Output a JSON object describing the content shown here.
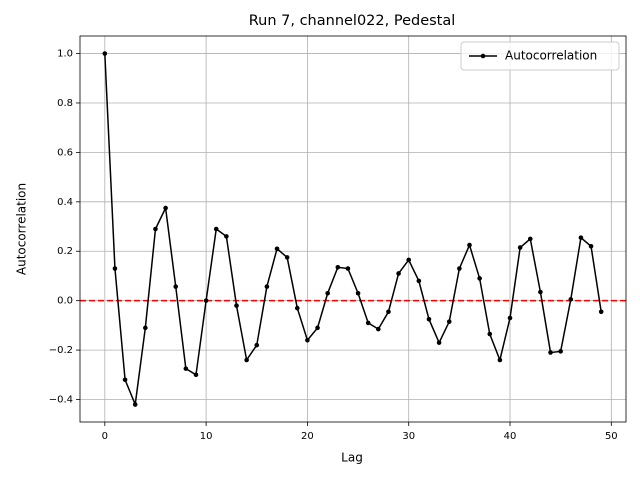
{
  "chart_data": {
    "type": "line",
    "title": "Run 7, channel022, Pedestal",
    "x_label": "Lag",
    "y_label": "Autocorrelation",
    "x": [
      0,
      1,
      2,
      3,
      4,
      5,
      6,
      7,
      8,
      9,
      10,
      11,
      12,
      13,
      14,
      15,
      16,
      17,
      18,
      19,
      20,
      21,
      22,
      23,
      24,
      25,
      26,
      27,
      28,
      29,
      30,
      31,
      32,
      33,
      34,
      35,
      36,
      37,
      38,
      39,
      40,
      41,
      42,
      43,
      44,
      45,
      46,
      47,
      48,
      49
    ],
    "series": [
      {
        "name": "Autocorrelation",
        "color": "#000000",
        "values": [
          1.0,
          0.13,
          -0.32,
          -0.42,
          -0.11,
          0.29,
          0.375,
          0.057,
          -0.275,
          -0.3,
          0.0,
          0.29,
          0.26,
          -0.02,
          -0.24,
          -0.18,
          0.057,
          0.21,
          0.175,
          -0.03,
          -0.16,
          -0.11,
          0.03,
          0.135,
          0.13,
          0.03,
          -0.09,
          -0.115,
          -0.045,
          0.11,
          0.165,
          0.08,
          -0.075,
          -0.17,
          -0.085,
          0.13,
          0.225,
          0.09,
          -0.135,
          -0.24,
          -0.07,
          0.215,
          0.25,
          0.035,
          -0.21,
          -0.205,
          0.005,
          0.255,
          0.22,
          -0.045
        ]
      }
    ],
    "hline": {
      "value": 0,
      "color": "#ff0000"
    },
    "xlim": [
      -2.45,
      51.45
    ],
    "xticks": [
      0,
      10,
      20,
      30,
      40,
      50
    ],
    "ylim": [
      -0.491,
      1.071
    ],
    "yticks": [
      {
        "value": -0.4,
        "label": "−0.4"
      },
      {
        "value": -0.2,
        "label": "−0.2"
      },
      {
        "value": 0,
        "label": "0.0"
      },
      {
        "value": 0.2,
        "label": "0.2"
      },
      {
        "value": 0.4,
        "label": "0.4"
      },
      {
        "value": 0.6,
        "label": "0.6"
      },
      {
        "value": 0.8,
        "label": "0.8"
      },
      {
        "value": 1.0,
        "label": "1.0"
      }
    ],
    "grid": true,
    "legend": "upper right"
  }
}
